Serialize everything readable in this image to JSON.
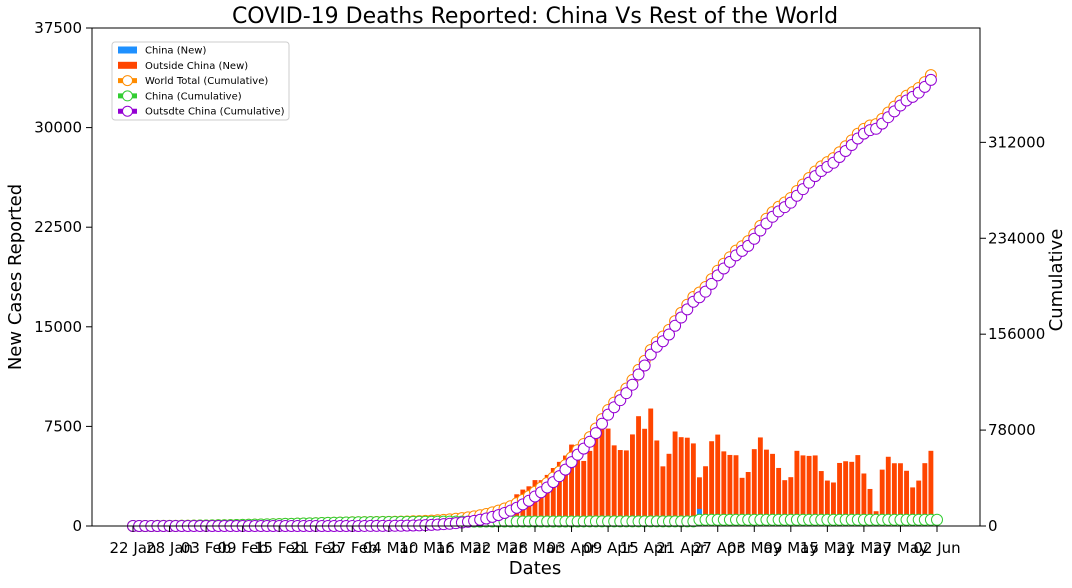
{
  "chart_data": {
    "type": "bar",
    "title": "COVID-19 Deaths Reported: China Vs Rest of the World",
    "xlabel": "Dates",
    "ylabel": "New Cases Reported",
    "ylabel_right": "Cumulative",
    "ylim": [
      0,
      37500
    ],
    "ylim_right": [
      0,
      405000
    ],
    "yticks": [
      "0",
      "7500",
      "15000",
      "22500",
      "30000",
      "37500"
    ],
    "yticks_right": [
      "0",
      "78000",
      "156000",
      "234000",
      "312000"
    ],
    "xticks": [
      "22 Jan",
      "28 Jan",
      "03 Feb",
      "09 Feb",
      "15 Feb",
      "21 Feb",
      "27 Feb",
      "04 Mar",
      "10 Mar",
      "16 Mar",
      "22 Mar",
      "28 Mar",
      "03 Apr",
      "09 Apr",
      "15 Apr",
      "21 Apr",
      "27 Apr",
      "03 May",
      "09 May",
      "15 May",
      "21 May",
      "27 May",
      "02 Jun"
    ],
    "legend_position": "top-left",
    "colors": {
      "china_new": "#1e90ff",
      "outside_new": "#ff4500",
      "world_cum_line": "#ff8c00",
      "china_cum_line": "#32cd32",
      "outside_cum_line": "#9400d3",
      "marker_face": "#ffffff"
    },
    "series": [
      {
        "name": "China (New)",
        "kind": "bar",
        "values": [
          17,
          0,
          8,
          16,
          14,
          26,
          49,
          2,
          38,
          42,
          46,
          103,
          64,
          66,
          72,
          70,
          85,
          87,
          100,
          107,
          100,
          86,
          97,
          108,
          97,
          254,
          13,
          143,
          142,
          105,
          98,
          136,
          114,
          118,
          109,
          97,
          150,
          71,
          52,
          29,
          44,
          47,
          35,
          42,
          31,
          38,
          31,
          30,
          28,
          27,
          22,
          17,
          22,
          11,
          7,
          13,
          10,
          14,
          10,
          15,
          8,
          6,
          9,
          7,
          4,
          6,
          3,
          5,
          4,
          8,
          7,
          3,
          5,
          4,
          7,
          6,
          3,
          4,
          1,
          3,
          5,
          6,
          4,
          6,
          5,
          2,
          3,
          1,
          2,
          0,
          1,
          2,
          1,
          1290,
          0,
          0,
          0,
          1,
          0,
          0,
          0,
          0,
          0,
          0,
          0,
          0,
          0,
          0,
          0,
          0,
          0,
          0,
          0,
          0,
          0,
          0,
          0,
          0,
          0,
          0,
          0,
          0,
          0,
          0,
          0,
          0,
          0,
          0,
          0,
          0,
          0,
          0,
          0
        ]
      },
      {
        "name": "Outside China (New)",
        "kind": "bar",
        "values": [
          0,
          0,
          0,
          0,
          0,
          0,
          0,
          0,
          0,
          0,
          0,
          1,
          0,
          0,
          0,
          0,
          0,
          0,
          0,
          0,
          0,
          0,
          0,
          0,
          1,
          1,
          0,
          0,
          0,
          0,
          0,
          1,
          1,
          4,
          3,
          5,
          9,
          7,
          14,
          18,
          20,
          29,
          34,
          38,
          61,
          85,
          97,
          121,
          147,
          211,
          240,
          342,
          370,
          446,
          523,
          642,
          749,
          885,
          1016,
          1323,
          1434,
          1725,
          1869,
          2387,
          2741,
          2989,
          3456,
          3452,
          3847,
          4366,
          4829,
          5305,
          6131,
          6049,
          4898,
          5656,
          6995,
          7642,
          7337,
          6072,
          5721,
          5691,
          6896,
          8269,
          7320,
          8846,
          6440,
          4492,
          5437,
          7116,
          6689,
          6650,
          6219,
          3666,
          4499,
          6384,
          6883,
          5620,
          5350,
          5329,
          3627,
          4067,
          5787,
          6669,
          5750,
          5432,
          4371,
          3450,
          3676,
          5661,
          5317,
          5278,
          5314,
          4138,
          3422,
          3276,
          4747,
          4876,
          4831,
          5338,
          3954,
          2789,
          1112,
          4244,
          5213,
          4726,
          4725,
          4159,
          2907,
          3420,
          4731,
          5662
        ]
      },
      {
        "name": "World Total (Cumulative)",
        "kind": "line",
        "values": [
          17,
          17,
          25,
          41,
          55,
          81,
          130,
          132,
          170,
          212,
          258,
          362,
          426,
          492,
          564,
          634,
          719,
          806,
          906,
          1013,
          1113,
          1199,
          1296,
          1404,
          1502,
          1757,
          1770,
          1913,
          2055,
          2160,
          2258,
          2395,
          2510,
          2632,
          2744,
          2846,
          3005,
          3083,
          3149,
          3196,
          3260,
          3326,
          3395,
          3475,
          3567,
          3690,
          3818,
          3969,
          4144,
          4382,
          4644,
          5003,
          5395,
          5852,
          6382,
          7037,
          7796,
          8695,
          9721,
          11059,
          12503,
          14234,
          16112,
          18510,
          21256,
          24251,
          27710,
          31166,
          35016,
          39386,
          44223,
          49535,
          55673,
          61730,
          66634,
          72296,
          79297,
          86945,
          94286,
          100364,
          106088,
          111784,
          118686,
          126962,
          134288,
          143140,
          149583,
          154077,
          159516,
          166632,
          173322,
          179974,
          186194,
          189861,
          194361,
          200746,
          207630,
          213251,
          218602,
          223931,
          227559,
          231627,
          237415,
          244085,
          249836,
          255270,
          259642,
          263092,
          266768,
          272430,
          277749,
          283029,
          288344,
          292483,
          295906,
          299183,
          303930,
          308807,
          313639,
          318978,
          322933,
          325722,
          326835,
          331079,
          336293,
          341019,
          345745,
          349905,
          352813,
          356233,
          360964,
          366627
        ]
      },
      {
        "name": "China (Cumulative)",
        "kind": "line",
        "values": [
          17,
          17,
          25,
          41,
          55,
          81,
          130,
          132,
          170,
          212,
          258,
          361,
          425,
          491,
          563,
          633,
          718,
          805,
          905,
          1012,
          1112,
          1198,
          1295,
          1403,
          1500,
          1754,
          1767,
          1910,
          2052,
          2157,
          2255,
          2391,
          2505,
          2623,
          2732,
          2829,
          2979,
          3050,
          3102,
          3131,
          3175,
          3222,
          3257,
          3299,
          3330,
          3368,
          3399,
          3429,
          3457,
          3484,
          3506,
          3523,
          3545,
          3556,
          3563,
          3576,
          3586,
          3600,
          3610,
          3625,
          3633,
          3639,
          3648,
          3655,
          3659,
          3665,
          3668,
          3673,
          3677,
          3685,
          3692,
          3695,
          3700,
          3704,
          3711,
          3717,
          3720,
          3724,
          3725,
          3728,
          3733,
          3739,
          3743,
          3749,
          3754,
          3756,
          3759,
          3760,
          3762,
          3762,
          3763,
          3765,
          3766,
          5056,
          5056,
          5056,
          5056,
          5057,
          5057,
          5057,
          5057,
          5057,
          5057,
          5057,
          5057,
          5057,
          5057,
          5057,
          5057,
          5057,
          5057,
          5057,
          5057,
          5057,
          5057,
          5057,
          5057,
          5057,
          5057,
          5057,
          5057,
          5057,
          5057,
          5057,
          5057,
          5057,
          5057,
          5057,
          5057,
          5057,
          5057,
          5057,
          5057
        ]
      },
      {
        "name": "Outsdte China (Cumulative)",
        "kind": "line",
        "values": [
          0,
          0,
          0,
          0,
          0,
          0,
          0,
          0,
          0,
          0,
          0,
          1,
          1,
          1,
          1,
          1,
          1,
          1,
          1,
          1,
          1,
          1,
          1,
          1,
          2,
          3,
          3,
          3,
          3,
          3,
          3,
          4,
          5,
          9,
          12,
          17,
          26,
          33,
          47,
          65,
          85,
          104,
          138,
          176,
          237,
          322,
          419,
          540,
          687,
          898,
          1138,
          1480,
          1850,
          2296,
          2819,
          3461,
          4210,
          5095,
          6111,
          7434,
          8868,
          10593,
          12462,
          14849,
          17590,
          20579,
          24035,
          27487,
          31334,
          35700,
          40529,
          45834,
          51965,
          58014,
          62912,
          68568,
          75563,
          83205,
          90542,
          96614,
          102335,
          108026,
          114922,
          123191,
          130511,
          139357,
          145797,
          150289,
          155726,
          162842,
          169531,
          176181,
          182400,
          186066,
          190565,
          196949,
          203832,
          209452,
          214802,
          220131,
          223758,
          227825,
          233612,
          240281,
          246031,
          251463,
          255834,
          259284,
          262960,
          268621,
          273938,
          279216,
          284530,
          288668,
          292090,
          295366,
          300113,
          304989,
          309820,
          315158,
          319112,
          321901,
          323013,
          327257,
          332470,
          337196,
          341921,
          346080,
          348987,
          352407,
          357138,
          362800
        ]
      }
    ]
  }
}
